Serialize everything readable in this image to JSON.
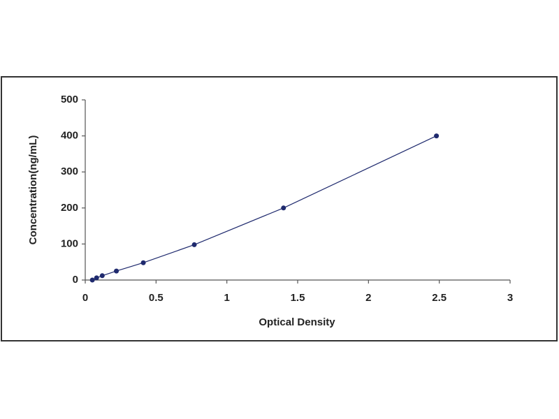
{
  "chart_data": {
    "type": "scatter",
    "x_label": "Optical Density",
    "y_label": "Concentration(ng/mL)",
    "x": [
      0.05,
      0.08,
      0.12,
      0.22,
      0.41,
      0.77,
      1.4,
      2.48
    ],
    "series": [
      {
        "color": "#1f2a6e",
        "values": [
          0,
          6,
          12,
          25,
          48,
          98,
          200,
          400
        ]
      }
    ],
    "connect_line": true,
    "xlim": [
      0,
      3
    ],
    "xticks": [
      0,
      0.5,
      1,
      1.5,
      2,
      2.5,
      3
    ],
    "ylim": [
      0,
      500
    ],
    "yticks": [
      0,
      100,
      200,
      300,
      400,
      500
    ],
    "grid": false
  }
}
